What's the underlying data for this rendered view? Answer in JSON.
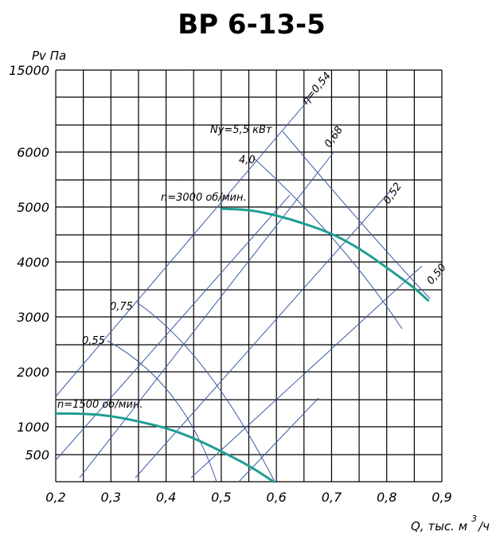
{
  "chart_data": {
    "type": "line",
    "title": "ВР 6-13-5",
    "xlabel": "Q, тыс. м",
    "xlabel_sup": "3",
    "xlabel_tail": "/ч",
    "ylabel": "Pv Па",
    "xlim": [
      0.2,
      0.9
    ],
    "x_ticks": [
      "0,2",
      "0,3",
      "0,4",
      "0,5",
      "0,6",
      "0,7",
      "0,8",
      "0,9"
    ],
    "y_ticks": [
      {
        "label": "15000",
        "value": 15000
      },
      {
        "label": "6000",
        "value": 6000
      },
      {
        "label": "5000",
        "value": 5000
      },
      {
        "label": "4000",
        "value": 4000
      },
      {
        "label": "3000",
        "value": 3000
      },
      {
        "label": "2000",
        "value": 2000
      },
      {
        "label": "1000",
        "value": 1000
      },
      {
        "label": "500",
        "value": 500
      }
    ],
    "grid": true,
    "series": [
      {
        "name": "n=3000 об/мин.",
        "x": [
          0.5,
          0.55,
          0.6,
          0.65,
          0.7,
          0.75,
          0.8,
          0.85,
          0.875
        ],
        "y": [
          4970,
          4950,
          4850,
          4700,
          4520,
          4250,
          3900,
          3530,
          3300
        ]
      },
      {
        "name": "n=1500 об/мин.",
        "x": [
          0.2,
          0.25,
          0.3,
          0.35,
          0.4,
          0.45,
          0.5,
          0.55,
          0.595
        ],
        "y": [
          1240,
          1240,
          1200,
          1100,
          980,
          800,
          560,
          300,
          0
        ]
      }
    ],
    "annotations": [
      {
        "text": "η=0,54",
        "x": 0.665,
        "y": 5900
      },
      {
        "text": "0,68",
        "x": 0.695,
        "y": 5400
      },
      {
        "text": "0,52",
        "x": 0.8,
        "y": 4900
      },
      {
        "text": "0,50",
        "x": 0.875,
        "y": 3600
      },
      {
        "text": "Ny=5,5 кВт",
        "x": 0.59,
        "y": 5600
      },
      {
        "text": "4,0",
        "x": 0.56,
        "y": 5000
      },
      {
        "text": "0,75",
        "x": 0.33,
        "y": 3050
      },
      {
        "text": "0,55",
        "x": 0.245,
        "y": 2450
      }
    ]
  }
}
